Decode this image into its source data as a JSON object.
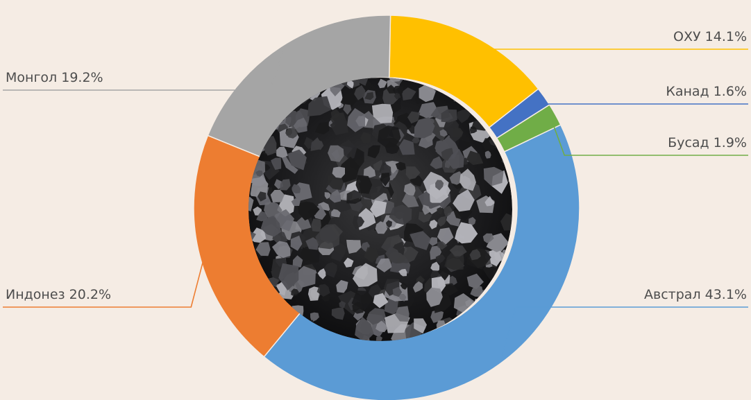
{
  "chart_data": {
    "type": "pie",
    "title": "",
    "slices": [
      {
        "label": "Австрал",
        "value": 43.1,
        "display": "Австрал 43.1%",
        "color": "#5b9bd5",
        "side": "right"
      },
      {
        "label": "Индонез",
        "value": 20.2,
        "display": "Индонез 20.2%",
        "color": "#ed7d31",
        "side": "left"
      },
      {
        "label": "Монгол",
        "value": 19.2,
        "display": "Монгол 19.2%",
        "color": "#a5a5a5",
        "side": "left"
      },
      {
        "label": "ОХУ",
        "value": 14.1,
        "display": "ОХУ 14.1%",
        "color": "#ffc000",
        "side": "right"
      },
      {
        "label": "Канад",
        "value": 1.6,
        "display": "Канад 1.6%",
        "color": "#4472c4",
        "side": "right"
      },
      {
        "label": "Бусад",
        "value": 1.9,
        "display": "Бусад 1.9%",
        "color": "#70ad47",
        "side": "right"
      }
    ],
    "center_image": "coal-pile",
    "legend": "leader-line labels"
  }
}
